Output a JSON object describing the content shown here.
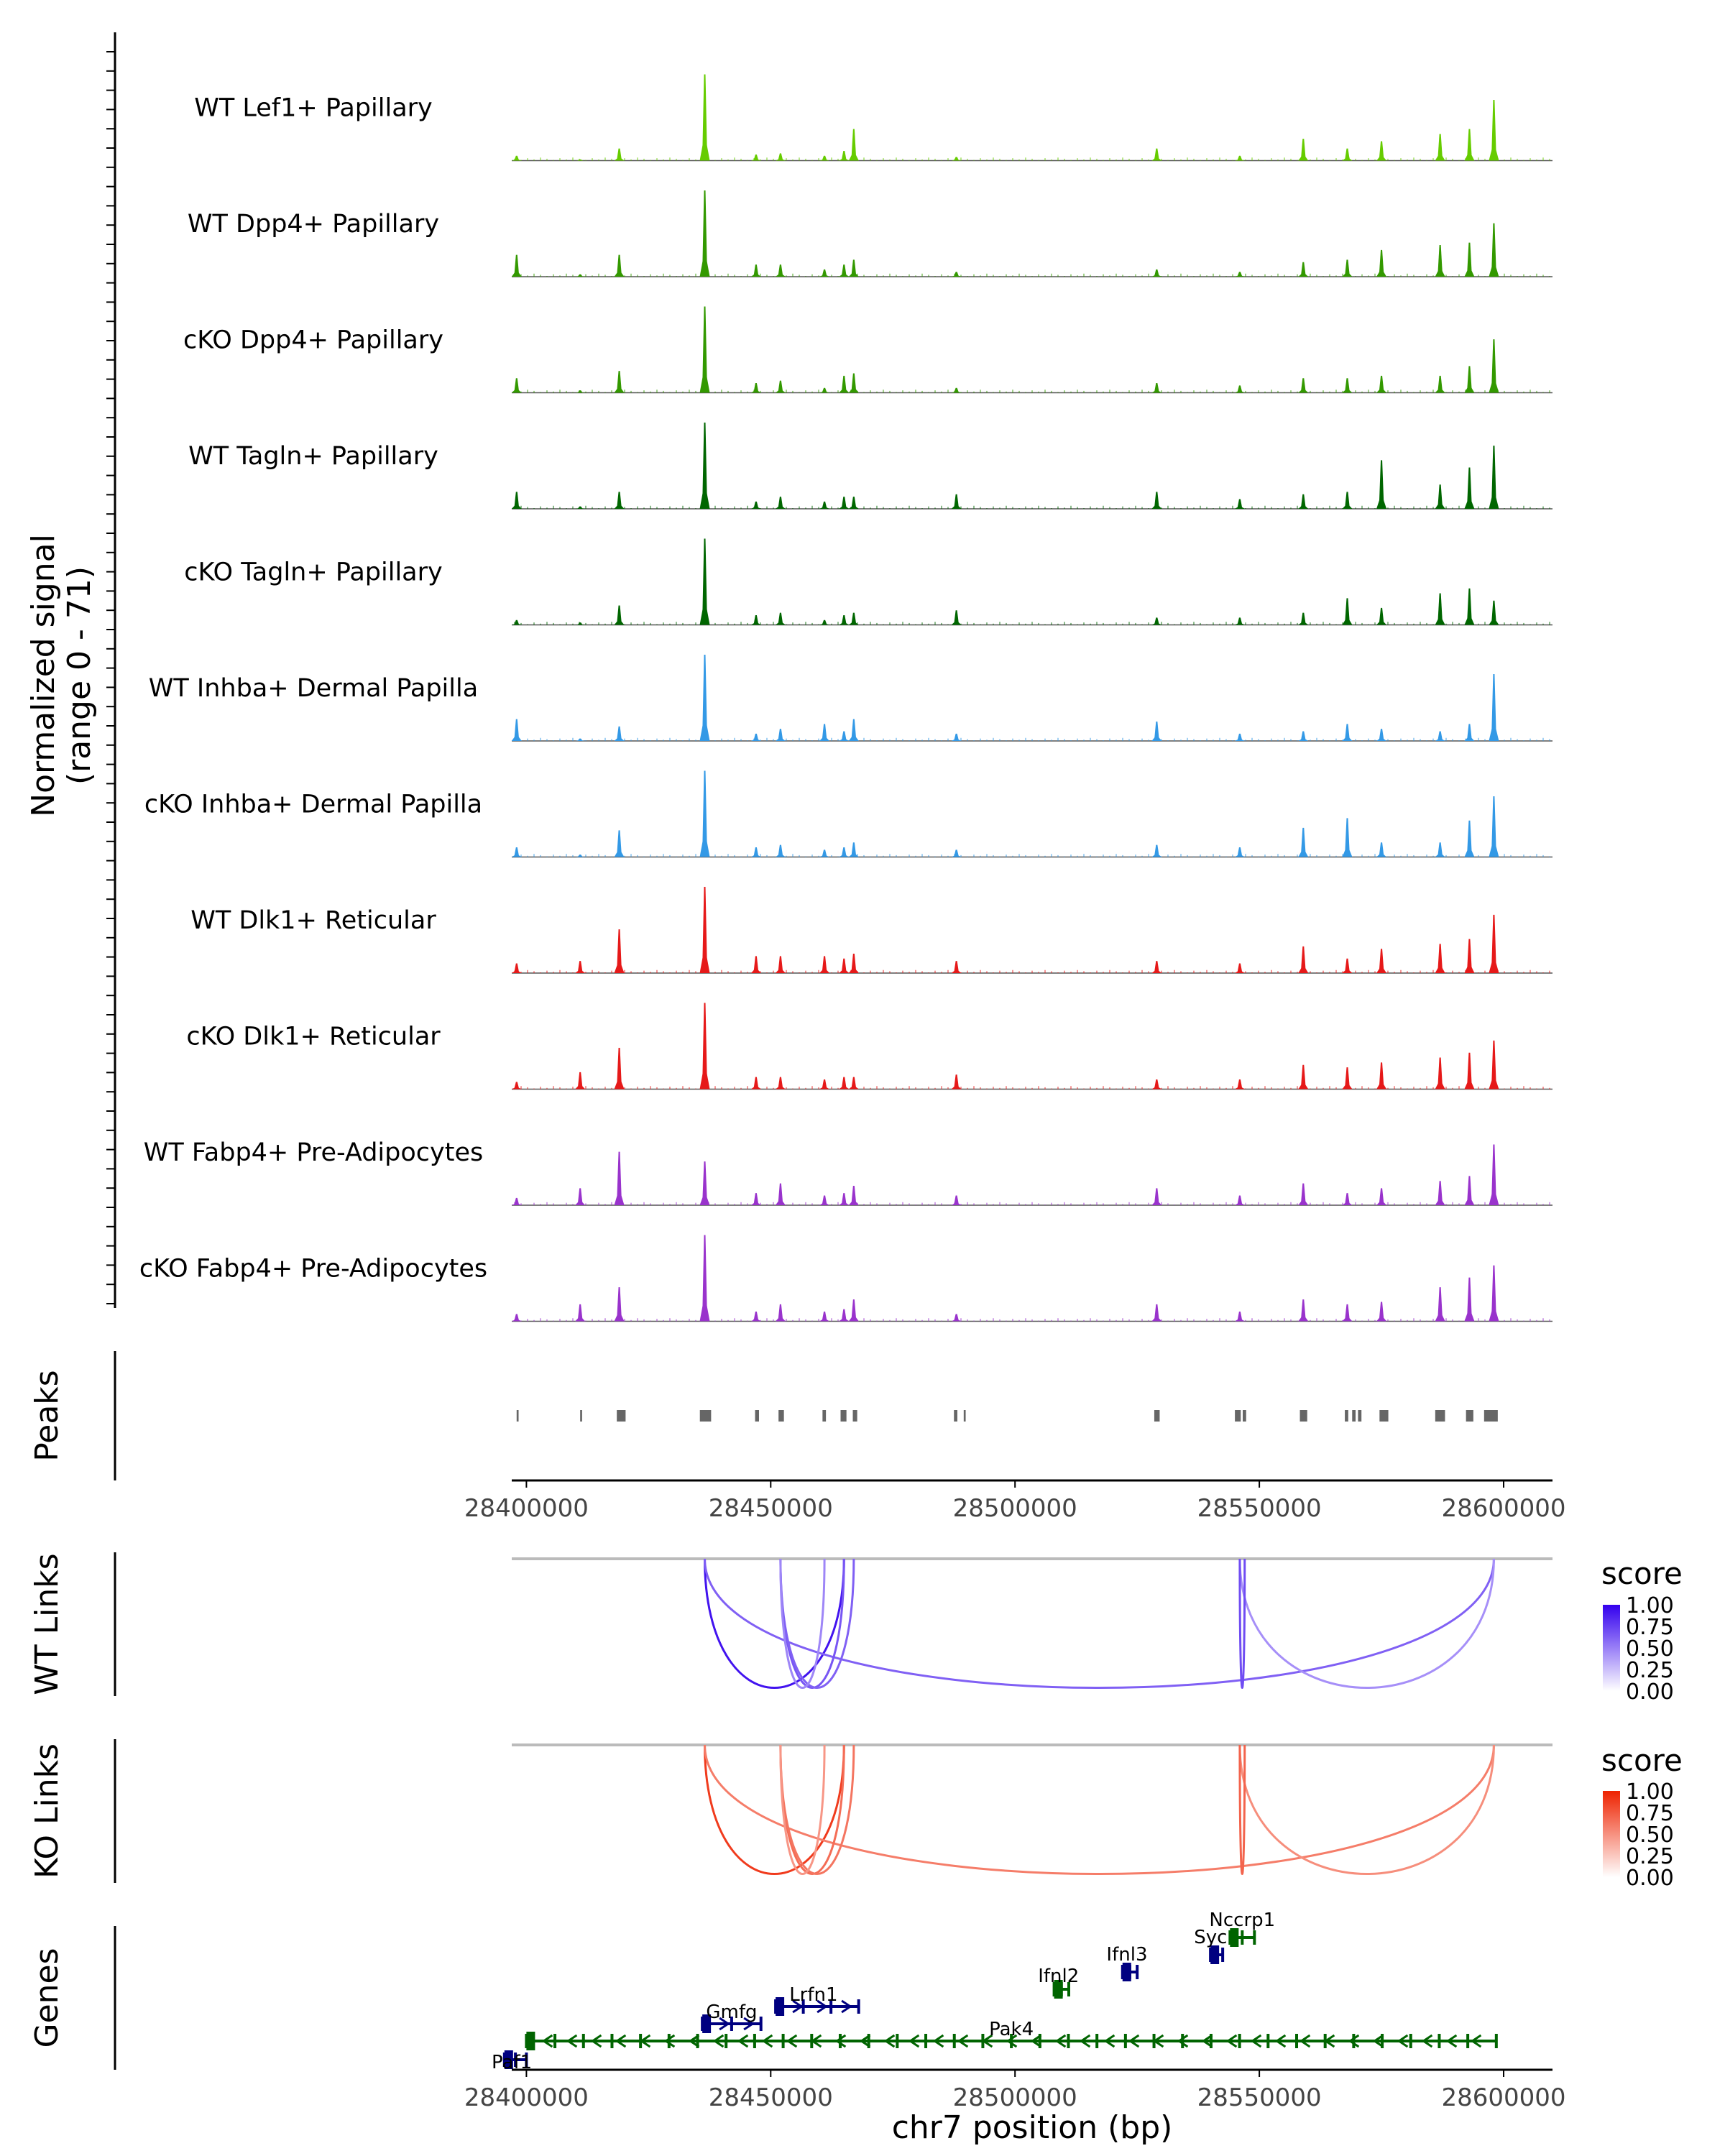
{
  "chart_data": {
    "type": "genome-browser",
    "chromosome": "chr7",
    "xlim": [
      28397000,
      28610000
    ],
    "coverage": {
      "ylabel": "Normalized signal",
      "ylabel_range": "(range 0 - 71)",
      "ylim": [
        0,
        71
      ],
      "peak_positions": [
        28398000,
        28411000,
        28419000,
        28436500,
        28447000,
        28452000,
        28461000,
        28465000,
        28467000,
        28488000,
        28529000,
        28546000,
        28559000,
        28568000,
        28575000,
        28587000,
        28593000,
        28598000
      ],
      "tracks": [
        {
          "name": "WT Lef1+ Papillary",
          "color": "#66cc00",
          "heights": [
            4,
            1,
            10,
            71,
            5,
            6,
            4,
            8,
            26,
            3,
            10,
            4,
            18,
            10,
            16,
            22,
            26,
            50
          ]
        },
        {
          "name": "WT Dpp4+ Papillary",
          "color": "#339900",
          "heights": [
            18,
            2,
            18,
            71,
            10,
            10,
            6,
            10,
            14,
            4,
            6,
            4,
            12,
            14,
            22,
            26,
            28,
            44
          ]
        },
        {
          "name": "cKO Dpp4+ Papillary",
          "color": "#339900",
          "heights": [
            12,
            2,
            18,
            71,
            8,
            10,
            4,
            14,
            16,
            4,
            8,
            6,
            12,
            12,
            14,
            14,
            22,
            44
          ]
        },
        {
          "name": "WT Tagln+ Papillary",
          "color": "#006600",
          "heights": [
            14,
            2,
            14,
            71,
            6,
            10,
            6,
            10,
            10,
            12,
            14,
            8,
            12,
            14,
            40,
            20,
            34,
            52
          ]
        },
        {
          "name": "cKO Tagln+ Papillary",
          "color": "#006600",
          "heights": [
            4,
            2,
            16,
            71,
            8,
            10,
            4,
            8,
            10,
            12,
            6,
            6,
            10,
            22,
            14,
            26,
            30,
            20
          ]
        },
        {
          "name": "WT Inhba+ Dermal Papilla",
          "color": "#3399e6",
          "heights": [
            18,
            2,
            12,
            71,
            6,
            10,
            14,
            8,
            18,
            6,
            16,
            6,
            8,
            14,
            10,
            8,
            14,
            55
          ]
        },
        {
          "name": "cKO Inhba+ Dermal Papilla",
          "color": "#3399e6",
          "heights": [
            8,
            2,
            22,
            71,
            8,
            10,
            6,
            8,
            12,
            6,
            10,
            8,
            24,
            32,
            12,
            12,
            30,
            50
          ]
        },
        {
          "name": "WT Dlk1+ Reticular",
          "color": "#e61919",
          "heights": [
            8,
            10,
            36,
            71,
            14,
            14,
            14,
            12,
            16,
            10,
            10,
            8,
            22,
            12,
            20,
            24,
            28,
            48
          ]
        },
        {
          "name": "cKO Dlk1+ Reticular",
          "color": "#e61919",
          "heights": [
            6,
            14,
            34,
            71,
            10,
            10,
            8,
            10,
            10,
            12,
            8,
            8,
            20,
            18,
            22,
            26,
            30,
            40
          ]
        },
        {
          "name": "WT Fabp4+ Pre-Adipocytes",
          "color": "#9933cc",
          "heights": [
            6,
            14,
            44,
            36,
            10,
            18,
            8,
            10,
            16,
            8,
            14,
            8,
            18,
            10,
            14,
            20,
            24,
            50
          ]
        },
        {
          "name": "cKO Fabp4+ Pre-Adipocytes",
          "color": "#9933cc",
          "heights": [
            6,
            14,
            28,
            71,
            8,
            14,
            8,
            10,
            18,
            6,
            14,
            8,
            18,
            14,
            16,
            28,
            36,
            46
          ]
        }
      ]
    },
    "peaks": {
      "label": "Peaks",
      "regions": [
        [
          28398000,
          28398400
        ],
        [
          28411000,
          28411400
        ],
        [
          28418500,
          28420300
        ],
        [
          28435500,
          28437800
        ],
        [
          28446800,
          28447600
        ],
        [
          28451600,
          28452700
        ],
        [
          28460600,
          28461300
        ],
        [
          28464300,
          28465500
        ],
        [
          28466800,
          28467700
        ],
        [
          28487500,
          28488200
        ],
        [
          28489500,
          28489900
        ],
        [
          28528500,
          28529600
        ],
        [
          28545000,
          28546200
        ],
        [
          28546600,
          28547300
        ],
        [
          28558300,
          28559800
        ],
        [
          28567500,
          28568200
        ],
        [
          28569000,
          28569700
        ],
        [
          28570200,
          28570900
        ],
        [
          28574600,
          28576400
        ],
        [
          28586000,
          28588000
        ],
        [
          28592300,
          28593800
        ],
        [
          28596000,
          28598800
        ]
      ]
    },
    "xaxis_ticks": [
      "28400000",
      "28450000",
      "28500000",
      "28550000",
      "28600000"
    ],
    "xaxis_tick_values": [
      28400000,
      28450000,
      28500000,
      28550000,
      28600000
    ],
    "xlabel": "chr7 position (bp)",
    "links": [
      {
        "label": "WT Links",
        "legend_title": "score",
        "legend_ticks": [
          "1.00",
          "0.75",
          "0.50",
          "0.25",
          "0.00"
        ],
        "color_high": "#3300ee",
        "color_low": "#ffffff",
        "arcs": [
          {
            "start": 28436500,
            "end": 28465000,
            "score": 0.9
          },
          {
            "start": 28436500,
            "end": 28598000,
            "score": 0.5
          },
          {
            "start": 28452000,
            "end": 28465000,
            "score": 0.55
          },
          {
            "start": 28452000,
            "end": 28467000,
            "score": 0.5
          },
          {
            "start": 28452000,
            "end": 28461000,
            "score": 0.3
          },
          {
            "start": 28546000,
            "end": 28598000,
            "score": 0.25
          },
          {
            "start": 28546000,
            "end": 28547000,
            "score": 0.6
          }
        ]
      },
      {
        "label": "KO Links",
        "legend_title": "score",
        "legend_ticks": [
          "1.00",
          "0.75",
          "0.50",
          "0.25",
          "0.00"
        ],
        "color_high": "#ee2200",
        "color_low": "#ffffff",
        "arcs": [
          {
            "start": 28436500,
            "end": 28465000,
            "score": 0.85
          },
          {
            "start": 28436500,
            "end": 28598000,
            "score": 0.45
          },
          {
            "start": 28452000,
            "end": 28465000,
            "score": 0.55
          },
          {
            "start": 28452000,
            "end": 28467000,
            "score": 0.5
          },
          {
            "start": 28452000,
            "end": 28461000,
            "score": 0.3
          },
          {
            "start": 28546000,
            "end": 28598000,
            "score": 0.35
          },
          {
            "start": 28546000,
            "end": 28547000,
            "score": 0.6
          }
        ]
      }
    ],
    "genes": {
      "label": "Genes",
      "items": [
        {
          "name": "Paf1",
          "start": 28395500,
          "end": 28400000,
          "strand": "+",
          "row": 0,
          "color": "#000080"
        },
        {
          "name": "Pak4",
          "start": 28400000,
          "end": 28598500,
          "strand": "-",
          "row": 1,
          "color": "#006400"
        },
        {
          "name": "Gmfg",
          "start": 28436000,
          "end": 28448000,
          "strand": "+",
          "row": 2,
          "color": "#000080"
        },
        {
          "name": "Lrfn1",
          "start": 28451000,
          "end": 28468000,
          "strand": "+",
          "row": 3,
          "color": "#000080"
        },
        {
          "name": "Ifnl2",
          "start": 28508000,
          "end": 28511000,
          "strand": "-",
          "row": 4,
          "color": "#006400"
        },
        {
          "name": "Ifnl3",
          "start": 28522000,
          "end": 28525000,
          "strand": "+",
          "row": 5,
          "color": "#000080"
        },
        {
          "name": "Sycn",
          "start": 28540000,
          "end": 28542500,
          "strand": "+",
          "row": 6,
          "color": "#000080"
        },
        {
          "name": "Nccrp1",
          "start": 28544000,
          "end": 28549000,
          "strand": "-",
          "row": 7,
          "color": "#006400"
        }
      ]
    }
  }
}
